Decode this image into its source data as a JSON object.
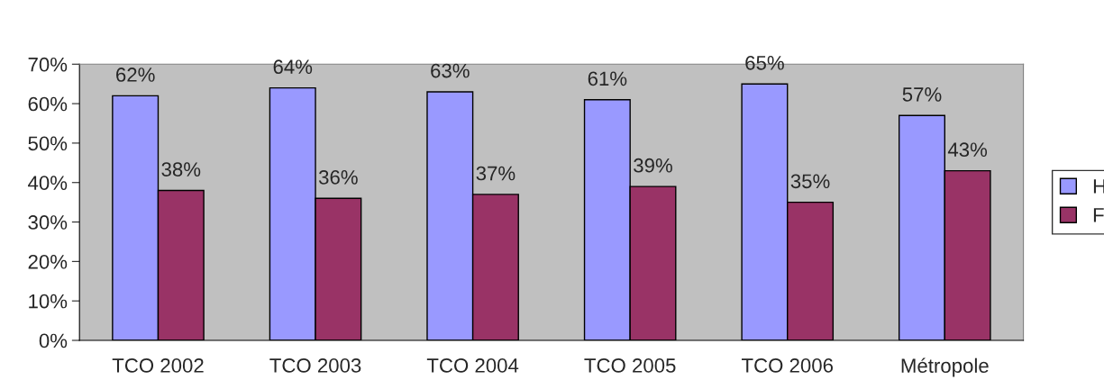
{
  "chart_data": {
    "type": "bar",
    "categories": [
      "TCO 2002",
      "TCO 2003",
      "TCO 2004",
      "TCO 2005",
      "TCO 2006",
      "Métropole"
    ],
    "series": [
      {
        "name": "H",
        "color": "#9999ff",
        "values": [
          62,
          64,
          63,
          61,
          65,
          57
        ],
        "value_labels": [
          "62%",
          "64%",
          "63%",
          "61%",
          "65%",
          "57%"
        ]
      },
      {
        "name": "F",
        "color": "#993366",
        "values": [
          38,
          36,
          37,
          39,
          35,
          43
        ],
        "value_labels": [
          "38%",
          "36%",
          "37%",
          "39%",
          "35%",
          "43%"
        ]
      }
    ],
    "ylim": [
      0,
      70
    ],
    "yticks": [
      {
        "value": 0,
        "label": "0%"
      },
      {
        "value": 10,
        "label": "10%"
      },
      {
        "value": 20,
        "label": "20%"
      },
      {
        "value": 30,
        "label": "30%"
      },
      {
        "value": 40,
        "label": "40%"
      },
      {
        "value": 50,
        "label": "50%"
      },
      {
        "value": 60,
        "label": "60%"
      },
      {
        "value": 70,
        "label": "70%"
      }
    ],
    "grid": false,
    "legend": "right"
  }
}
